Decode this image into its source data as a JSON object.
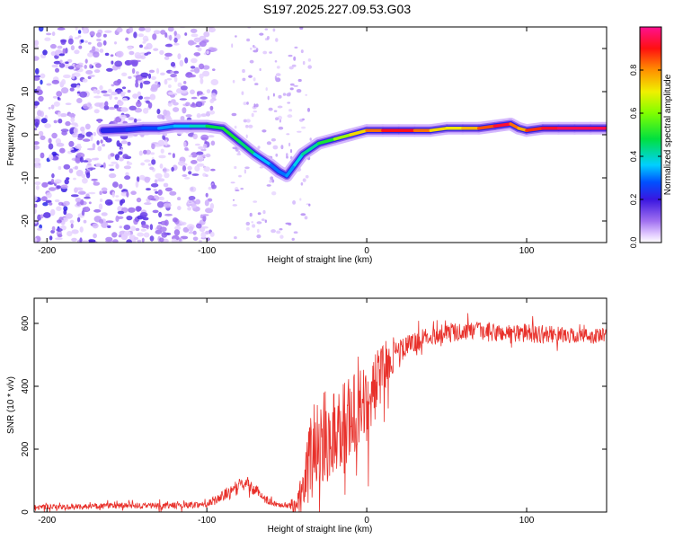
{
  "figure_title": "S197.2025.227.09.53.G03",
  "colors": {
    "snr_line": "#e8302a",
    "axis": "#000000",
    "background": "#ffffff"
  },
  "chart_data": [
    {
      "id": "spectrogram",
      "type": "heatmap",
      "title": "",
      "xlabel": "Height of straight line (km)",
      "ylabel": "Frequency (Hz)",
      "xlim": [
        -208,
        150
      ],
      "ylim": [
        -25,
        25
      ],
      "x_ticks": [
        -200,
        -100,
        0,
        100
      ],
      "y_ticks": [
        -20,
        -10,
        0,
        10,
        20
      ],
      "ridge": {
        "x": [
          -165,
          -150,
          -140,
          -130,
          -120,
          -110,
          -100,
          -90,
          -80,
          -70,
          -60,
          -55,
          -50,
          -45,
          -40,
          -30,
          -20,
          -10,
          0,
          10,
          20,
          30,
          40,
          50,
          60,
          70,
          80,
          90,
          95,
          100,
          110,
          120,
          130,
          140,
          150
        ],
        "y": [
          1.0,
          1.2,
          1.5,
          1.5,
          2.0,
          2.0,
          2.0,
          1.5,
          -1.5,
          -4.5,
          -7.0,
          -8.5,
          -9.5,
          -7.0,
          -4.5,
          -2.0,
          -1.0,
          0.0,
          1.0,
          1.0,
          1.0,
          1.0,
          1.0,
          1.5,
          1.5,
          1.5,
          2.0,
          2.5,
          1.5,
          1.0,
          1.5,
          1.5,
          1.5,
          1.5,
          1.5
        ],
        "amplitude": [
          0.2,
          0.25,
          0.25,
          0.3,
          0.35,
          0.35,
          0.45,
          0.5,
          0.5,
          0.4,
          0.3,
          0.3,
          0.3,
          0.35,
          0.4,
          0.45,
          0.55,
          0.7,
          0.75,
          0.9,
          0.92,
          0.9,
          0.75,
          0.7,
          0.72,
          0.8,
          0.9,
          0.95,
          0.7,
          0.85,
          0.9,
          0.95,
          0.95,
          0.95,
          0.95
        ]
      },
      "noise_region": {
        "x_range": [
          -208,
          -95
        ],
        "typical_amplitude": 0.08
      },
      "colorbar": {
        "label": "Normalized spectral amplitude",
        "range": [
          0.0,
          1.0
        ],
        "ticks": [
          "0.0",
          "0.2",
          "0.4",
          "0.6",
          "0.8"
        ],
        "tick_values": [
          0.0,
          0.2,
          0.4,
          0.6,
          0.8
        ],
        "colormap": "rainbow (white → violet → blue → cyan → green → yellow → red → magenta)"
      }
    },
    {
      "id": "snr",
      "type": "line",
      "title": "",
      "xlabel": "Height of straight line (km)",
      "ylabel": "SNR (10 * v/v)",
      "xlim": [
        -208,
        150
      ],
      "ylim": [
        0,
        680
      ],
      "x_ticks": [
        -200,
        -100,
        0,
        100
      ],
      "y_ticks": [
        0,
        200,
        400,
        600
      ],
      "envelope": {
        "x": [
          -208,
          -150,
          -120,
          -100,
          -90,
          -80,
          -75,
          -70,
          -60,
          -50,
          -45,
          -40,
          -35,
          -30,
          -25,
          -20,
          -10,
          0,
          5,
          10,
          15,
          20,
          30,
          40,
          50,
          60,
          70,
          80,
          90,
          100,
          110,
          120,
          130,
          140,
          150
        ],
        "mean": [
          15,
          20,
          20,
          25,
          50,
          80,
          95,
          70,
          30,
          20,
          30,
          60,
          180,
          240,
          230,
          260,
          300,
          330,
          400,
          450,
          490,
          510,
          540,
          560,
          570,
          575,
          575,
          570,
          570,
          570,
          565,
          565,
          560,
          560,
          560
        ],
        "spread": [
          8,
          10,
          10,
          10,
          20,
          25,
          20,
          20,
          10,
          10,
          30,
          60,
          150,
          160,
          140,
          150,
          140,
          130,
          110,
          90,
          60,
          40,
          35,
          30,
          30,
          30,
          30,
          30,
          30,
          30,
          30,
          25,
          25,
          25,
          25
        ]
      }
    }
  ]
}
